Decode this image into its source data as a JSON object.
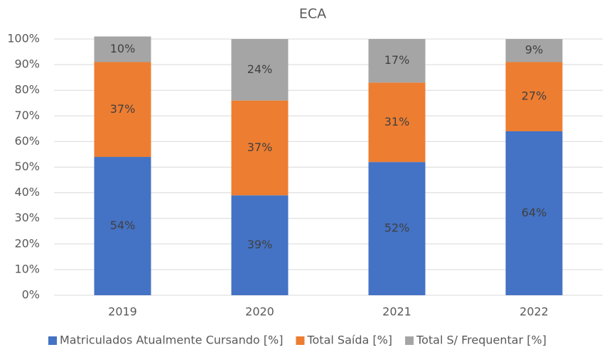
{
  "chart_data": {
    "type": "stacked_bar",
    "title": "ECA",
    "categories": [
      "2019",
      "2020",
      "2021",
      "2022"
    ],
    "series": [
      {
        "name": "Matriculados Atualmente Cursando [%]",
        "color": "#4472c4",
        "values": [
          54,
          39,
          52,
          64
        ],
        "value_labels": [
          "54%",
          "39%",
          "52%",
          "64%"
        ]
      },
      {
        "name": "Total Saída [%]",
        "color": "#ed7d31",
        "values": [
          37,
          37,
          31,
          27
        ],
        "value_labels": [
          "37%",
          "37%",
          "31%",
          "27%"
        ]
      },
      {
        "name": "Total S/ Frequentar [%]",
        "color": "#a5a5a5",
        "values": [
          10,
          24,
          17,
          9
        ],
        "value_labels": [
          "10%",
          "24%",
          "17%",
          "9%"
        ]
      }
    ],
    "ylim": [
      0,
      100
    ],
    "yticks": [
      {
        "value": 0,
        "label": "0%"
      },
      {
        "value": 10,
        "label": "10%"
      },
      {
        "value": 20,
        "label": "20%"
      },
      {
        "value": 30,
        "label": "30%"
      },
      {
        "value": 40,
        "label": "40%"
      },
      {
        "value": 50,
        "label": "50%"
      },
      {
        "value": 60,
        "label": "60%"
      },
      {
        "value": 70,
        "label": "70%"
      },
      {
        "value": 80,
        "label": "80%"
      },
      {
        "value": 90,
        "label": "90%"
      },
      {
        "value": 100,
        "label": "100%"
      }
    ],
    "grid": true,
    "legend": "bottom"
  }
}
